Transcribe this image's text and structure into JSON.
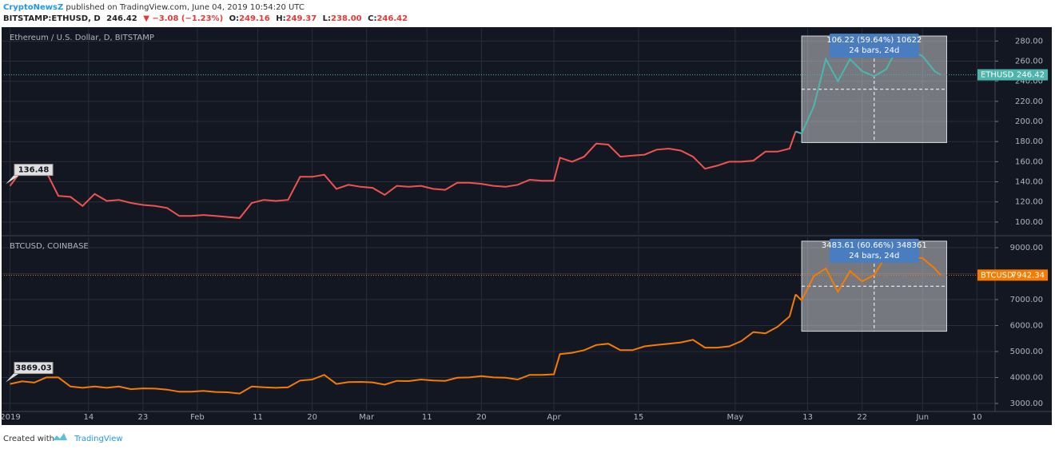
{
  "header": {
    "site": "CryptoNewsZ",
    "published": " published on TradingView.com, June 04, 2019 10:54:20 UTC",
    "symbol": "BITSTAMP:ETHUSD, D",
    "price": "246.42",
    "change": "▼ −3.08 (−1.23%)",
    "ohlc": [
      {
        "label": "O:",
        "value": "249.16"
      },
      {
        "label": "H:",
        "value": "249.37"
      },
      {
        "label": "L:",
        "value": "238.00"
      },
      {
        "label": "C:",
        "value": "246.42"
      }
    ]
  },
  "footer": {
    "created": "Created with",
    "brand": "TradingView"
  },
  "chart_data": [
    {
      "type": "line",
      "title": "Ethereum / U.S. Dollar, D, BITSTAMP",
      "symbol": "ETHUSD",
      "last": 246.42,
      "start_label": 136.48,
      "color": "#ef5350",
      "range_color": "#4db6ac",
      "x": [
        "2019-01-01",
        "2019-01-03",
        "2019-01-05",
        "2019-01-07",
        "2019-01-09",
        "2019-01-11",
        "2019-01-13",
        "2019-01-15",
        "2019-01-17",
        "2019-01-19",
        "2019-01-21",
        "2019-01-23",
        "2019-01-25",
        "2019-01-27",
        "2019-01-29",
        "2019-01-31",
        "2019-02-02",
        "2019-02-04",
        "2019-02-06",
        "2019-02-08",
        "2019-02-10",
        "2019-02-12",
        "2019-02-14",
        "2019-02-16",
        "2019-02-18",
        "2019-02-20",
        "2019-02-22",
        "2019-02-24",
        "2019-02-26",
        "2019-02-28",
        "2019-03-02",
        "2019-03-04",
        "2019-03-06",
        "2019-03-08",
        "2019-03-10",
        "2019-03-12",
        "2019-03-14",
        "2019-03-16",
        "2019-03-18",
        "2019-03-20",
        "2019-03-22",
        "2019-03-24",
        "2019-03-26",
        "2019-03-28",
        "2019-03-30",
        "2019-04-01",
        "2019-04-02",
        "2019-04-04",
        "2019-04-06",
        "2019-04-08",
        "2019-04-10",
        "2019-04-12",
        "2019-04-14",
        "2019-04-16",
        "2019-04-18",
        "2019-04-20",
        "2019-04-22",
        "2019-04-24",
        "2019-04-26",
        "2019-04-28",
        "2019-04-30",
        "2019-05-02",
        "2019-05-04",
        "2019-05-06",
        "2019-05-08",
        "2019-05-10",
        "2019-05-11",
        "2019-05-12",
        "2019-05-14",
        "2019-05-16",
        "2019-05-18",
        "2019-05-20",
        "2019-05-22",
        "2019-05-24",
        "2019-05-26",
        "2019-05-28",
        "2019-05-30",
        "2019-06-01",
        "2019-06-03",
        "2019-06-04"
      ],
      "values": [
        136,
        152,
        153,
        150,
        126,
        125,
        116,
        128,
        121,
        122,
        119,
        117,
        116,
        114,
        106,
        106,
        107,
        106,
        105,
        104,
        119,
        122,
        121,
        122,
        145,
        145,
        147,
        133,
        137,
        135,
        134,
        127,
        136,
        135,
        136,
        133,
        132,
        139,
        139,
        138,
        136,
        135,
        137,
        142,
        141,
        141,
        164,
        160,
        165,
        178,
        177,
        165,
        166,
        167,
        172,
        173,
        171,
        165,
        153,
        156,
        160,
        160,
        161,
        170,
        170,
        173,
        190,
        188,
        215,
        262,
        240,
        262,
        250,
        245,
        252,
        275,
        270,
        265,
        250,
        246.42
      ],
      "xlim": [
        "2018-12-31",
        "2019-06-13"
      ],
      "ylim": [
        88,
        293
      ],
      "yticks": [
        {
          "value": 100,
          "label": "100.00"
        },
        {
          "value": 120,
          "label": "120.00"
        },
        {
          "value": 140,
          "label": "140.00"
        },
        {
          "value": 160,
          "label": "160.00"
        },
        {
          "value": 180,
          "label": "180.00"
        },
        {
          "value": 200,
          "label": "200.00"
        },
        {
          "value": 220,
          "label": "220.00"
        },
        {
          "value": 240,
          "label": "240.00"
        },
        {
          "value": 260,
          "label": "260.00"
        },
        {
          "value": 280,
          "label": "280.00"
        }
      ],
      "measure": {
        "x": [
          "2019-05-12",
          "2019-06-05"
        ],
        "y": [
          179,
          285
        ],
        "label": [
          "106.22 (59.64%) 10622",
          "24 bars, 24d"
        ]
      }
    },
    {
      "type": "line",
      "title": "BTCUSD, COINBASE",
      "symbol": "BTCUSD",
      "last": 7942.34,
      "start_label": 3869.03,
      "color": "#f57c00",
      "range_color": "#f57c00",
      "x": [
        "2019-01-01",
        "2019-01-03",
        "2019-01-05",
        "2019-01-07",
        "2019-01-09",
        "2019-01-11",
        "2019-01-13",
        "2019-01-15",
        "2019-01-17",
        "2019-01-19",
        "2019-01-21",
        "2019-01-23",
        "2019-01-25",
        "2019-01-27",
        "2019-01-29",
        "2019-01-31",
        "2019-02-02",
        "2019-02-04",
        "2019-02-06",
        "2019-02-08",
        "2019-02-10",
        "2019-02-12",
        "2019-02-14",
        "2019-02-16",
        "2019-02-18",
        "2019-02-20",
        "2019-02-22",
        "2019-02-24",
        "2019-02-26",
        "2019-02-28",
        "2019-03-02",
        "2019-03-04",
        "2019-03-06",
        "2019-03-08",
        "2019-03-10",
        "2019-03-12",
        "2019-03-14",
        "2019-03-16",
        "2019-03-18",
        "2019-03-20",
        "2019-03-22",
        "2019-03-24",
        "2019-03-26",
        "2019-03-28",
        "2019-03-30",
        "2019-04-01",
        "2019-04-02",
        "2019-04-04",
        "2019-04-06",
        "2019-04-08",
        "2019-04-10",
        "2019-04-12",
        "2019-04-14",
        "2019-04-16",
        "2019-04-18",
        "2019-04-20",
        "2019-04-22",
        "2019-04-24",
        "2019-04-26",
        "2019-04-28",
        "2019-04-30",
        "2019-05-02",
        "2019-05-04",
        "2019-05-06",
        "2019-05-08",
        "2019-05-10",
        "2019-05-11",
        "2019-05-12",
        "2019-05-14",
        "2019-05-16",
        "2019-05-18",
        "2019-05-20",
        "2019-05-22",
        "2019-05-24",
        "2019-05-26",
        "2019-05-28",
        "2019-05-30",
        "2019-06-01",
        "2019-06-03",
        "2019-06-04"
      ],
      "values": [
        3750,
        3850,
        3800,
        4000,
        4000,
        3650,
        3600,
        3650,
        3600,
        3650,
        3550,
        3580,
        3570,
        3530,
        3450,
        3450,
        3480,
        3440,
        3430,
        3380,
        3650,
        3620,
        3600,
        3620,
        3880,
        3920,
        4100,
        3750,
        3820,
        3830,
        3810,
        3720,
        3870,
        3860,
        3920,
        3880,
        3870,
        3990,
        4000,
        4050,
        4000,
        3990,
        3920,
        4100,
        4100,
        4120,
        4900,
        4950,
        5050,
        5250,
        5300,
        5050,
        5050,
        5200,
        5250,
        5300,
        5350,
        5450,
        5150,
        5150,
        5200,
        5400,
        5750,
        5700,
        5950,
        6350,
        7200,
        6970,
        7900,
        8200,
        7300,
        8100,
        7700,
        7950,
        8700,
        8700,
        8600,
        8600,
        8200,
        7942.34
      ],
      "xlim": [
        "2018-12-31",
        "2019-06-13"
      ],
      "ylim": [
        2690,
        9400
      ],
      "yticks": [
        {
          "value": 3000,
          "label": "3000.00"
        },
        {
          "value": 4000,
          "label": "4000.00"
        },
        {
          "value": 5000,
          "label": "5000.00"
        },
        {
          "value": 6000,
          "label": "6000.00"
        },
        {
          "value": 7000,
          "label": "7000.00"
        },
        {
          "value": 8000,
          "label": "8000.00"
        },
        {
          "value": 9000,
          "label": "9000.00"
        }
      ],
      "xticks": [
        {
          "value": "2019-01-01",
          "label": "2019"
        },
        {
          "value": "2019-01-14",
          "label": "14"
        },
        {
          "value": "2019-01-23",
          "label": "23"
        },
        {
          "value": "2019-02-01",
          "label": "Feb"
        },
        {
          "value": "2019-02-11",
          "label": "11"
        },
        {
          "value": "2019-02-20",
          "label": "20"
        },
        {
          "value": "2019-03-01",
          "label": "Mar"
        },
        {
          "value": "2019-03-11",
          "label": "11"
        },
        {
          "value": "2019-03-20",
          "label": "20"
        },
        {
          "value": "2019-04-01",
          "label": "Apr"
        },
        {
          "value": "2019-04-15",
          "label": "15"
        },
        {
          "value": "2019-05-01",
          "label": "May"
        },
        {
          "value": "2019-05-13",
          "label": "13"
        },
        {
          "value": "2019-05-22",
          "label": "22"
        },
        {
          "value": "2019-06-01",
          "label": "Jun"
        },
        {
          "value": "2019-06-10",
          "label": "10"
        }
      ],
      "measure": {
        "x": [
          "2019-05-12",
          "2019-06-05"
        ],
        "y": [
          5780,
          9250
        ],
        "label": [
          "3483.61 (60.66%) 348361",
          "24 bars, 24d"
        ]
      }
    }
  ]
}
